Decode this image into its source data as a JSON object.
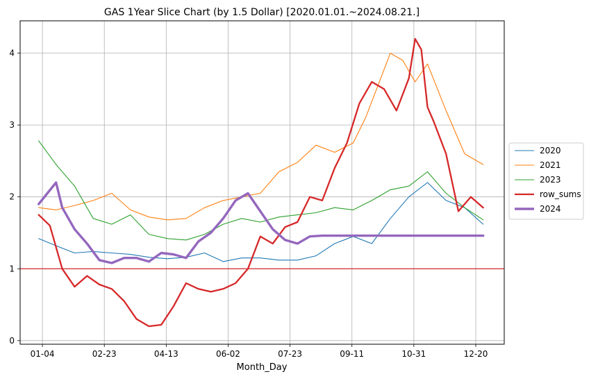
{
  "chart_data": {
    "type": "line",
    "title": "GAS 1Year Slice Chart (by 1.5 Dollar) [2020.01.01.~2024.08.21.]",
    "xlabel": "Month_Day",
    "ylabel": "",
    "x_ticks": [
      "01-04",
      "02-23",
      "04-13",
      "06-02",
      "07-23",
      "09-11",
      "10-31",
      "12-20"
    ],
    "x_tick_days": [
      4,
      54,
      104,
      154,
      204,
      254,
      304,
      354
    ],
    "xlim": [
      -14,
      377
    ],
    "ylim": [
      -0.05,
      4.45
    ],
    "y_ticks": [
      0,
      1,
      2,
      3,
      4
    ],
    "grid": true,
    "legend_position": "center-right",
    "reference_line": {
      "y": 1.0,
      "color": "#d62728"
    },
    "series": [
      {
        "name": "2020",
        "color": "#1f77b4",
        "stroke": "thin",
        "x": [
          1,
          15,
          30,
          45,
          60,
          75,
          90,
          105,
          120,
          135,
          150,
          165,
          180,
          195,
          210,
          225,
          240,
          255,
          270,
          285,
          300,
          315,
          330,
          345,
          360
        ],
        "y": [
          1.42,
          1.32,
          1.22,
          1.24,
          1.22,
          1.2,
          1.16,
          1.14,
          1.16,
          1.22,
          1.1,
          1.15,
          1.15,
          1.12,
          1.12,
          1.18,
          1.35,
          1.45,
          1.35,
          1.7,
          2.0,
          2.2,
          1.95,
          1.85,
          1.62
        ]
      },
      {
        "name": "2021",
        "color": "#ff7f0e",
        "stroke": "thin",
        "x": [
          1,
          15,
          30,
          45,
          60,
          75,
          90,
          105,
          120,
          135,
          150,
          165,
          180,
          195,
          210,
          225,
          240,
          255,
          265,
          275,
          285,
          295,
          305,
          315,
          330,
          345,
          360
        ],
        "y": [
          1.85,
          1.82,
          1.88,
          1.95,
          2.05,
          1.82,
          1.72,
          1.68,
          1.7,
          1.85,
          1.95,
          2.0,
          2.05,
          2.35,
          2.48,
          2.72,
          2.62,
          2.75,
          3.1,
          3.55,
          4.0,
          3.9,
          3.6,
          3.85,
          3.2,
          2.6,
          2.45
        ]
      },
      {
        "name": "2023",
        "color": "#2ca02c",
        "stroke": "thin",
        "x": [
          1,
          15,
          30,
          45,
          60,
          75,
          90,
          105,
          120,
          135,
          150,
          165,
          180,
          195,
          210,
          225,
          240,
          255,
          270,
          285,
          300,
          315,
          330,
          345,
          360
        ],
        "y": [
          2.78,
          2.45,
          2.15,
          1.7,
          1.62,
          1.75,
          1.48,
          1.42,
          1.4,
          1.48,
          1.62,
          1.7,
          1.65,
          1.72,
          1.75,
          1.78,
          1.85,
          1.82,
          1.95,
          2.1,
          2.15,
          2.35,
          2.05,
          1.85,
          1.68
        ]
      },
      {
        "name": "row_sums",
        "color": "#d62728",
        "stroke": "medium",
        "x": [
          1,
          10,
          20,
          30,
          40,
          50,
          60,
          70,
          80,
          90,
          100,
          110,
          120,
          130,
          140,
          150,
          160,
          170,
          180,
          190,
          200,
          210,
          220,
          230,
          240,
          250,
          260,
          270,
          280,
          290,
          300,
          305,
          310,
          315,
          320,
          330,
          340,
          350,
          360
        ],
        "y": [
          1.75,
          1.6,
          1.0,
          0.75,
          0.9,
          0.78,
          0.72,
          0.55,
          0.3,
          0.2,
          0.22,
          0.48,
          0.8,
          0.72,
          0.68,
          0.72,
          0.8,
          1.0,
          1.45,
          1.35,
          1.58,
          1.65,
          2.0,
          1.95,
          2.4,
          2.75,
          3.3,
          3.6,
          3.5,
          3.2,
          3.65,
          4.2,
          4.05,
          3.25,
          3.05,
          2.6,
          1.8,
          2.0,
          1.85
        ]
      },
      {
        "name": "2024",
        "color": "#9467bd",
        "stroke": "thick",
        "x": [
          1,
          8,
          15,
          20,
          30,
          40,
          50,
          60,
          70,
          80,
          90,
          100,
          110,
          120,
          130,
          140,
          150,
          160,
          170,
          180,
          190,
          200,
          210,
          220,
          230,
          360
        ],
        "y": [
          1.9,
          2.05,
          2.2,
          1.85,
          1.55,
          1.35,
          1.12,
          1.08,
          1.15,
          1.15,
          1.1,
          1.22,
          1.2,
          1.15,
          1.38,
          1.5,
          1.7,
          1.95,
          2.05,
          1.8,
          1.55,
          1.4,
          1.35,
          1.45,
          1.46,
          1.46
        ]
      }
    ]
  }
}
